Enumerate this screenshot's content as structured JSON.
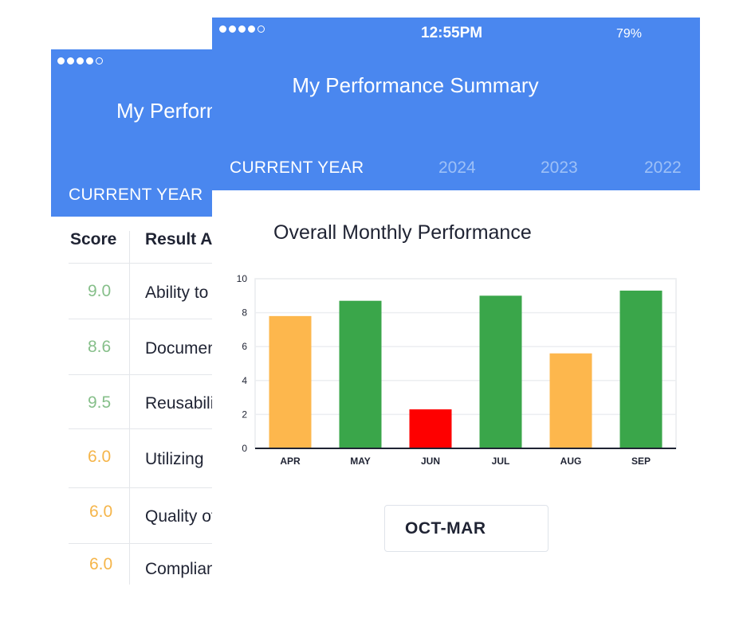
{
  "back_screen": {
    "title": "My Performance Summary",
    "active_tab": "CURRENT YEAR",
    "columns": [
      "Score",
      "Result Area"
    ],
    "rows": [
      {
        "score": "9.0",
        "text": "Ability to",
        "level": "good"
      },
      {
        "score": "8.6",
        "text": "Documentation",
        "level": "good"
      },
      {
        "score": "9.5",
        "text": "Reusability",
        "level": "good"
      },
      {
        "score": "6.0",
        "text": "Utilizing",
        "level": "mid"
      },
      {
        "score": "6.0",
        "text": "Quality of",
        "level": "mid"
      },
      {
        "score": "6.0",
        "text": "Compliance",
        "level": "mid"
      }
    ]
  },
  "front_screen": {
    "status": {
      "time": "12:55PM",
      "battery": "79%"
    },
    "title": "My Performance Summary",
    "tabs": {
      "current": "CURRENT YEAR",
      "y2024": "2024",
      "y2023": "2023",
      "y2022": "2022"
    },
    "range_button": "OCT-MAR"
  },
  "colors": {
    "header": "#4a87ef",
    "green": "#3aa64a",
    "orange": "#fdb74d",
    "red": "#fe0000",
    "score_good": "#86bf8a",
    "score_mid": "#f5b54a"
  },
  "chart_data": {
    "type": "bar",
    "title": "Overall Monthly Performance",
    "categories": [
      "APR",
      "MAY",
      "JUN",
      "JUL",
      "AUG",
      "SEP"
    ],
    "values": [
      7.8,
      8.7,
      2.3,
      9.0,
      5.6,
      9.3
    ],
    "bar_colors": [
      "#fdb74d",
      "#3aa64a",
      "#fe0000",
      "#3aa64a",
      "#fdb74d",
      "#3aa64a"
    ],
    "ylim": [
      0,
      10
    ],
    "yticks": [
      0,
      2,
      4,
      6,
      8,
      10
    ],
    "grid": true,
    "legend": "none"
  }
}
